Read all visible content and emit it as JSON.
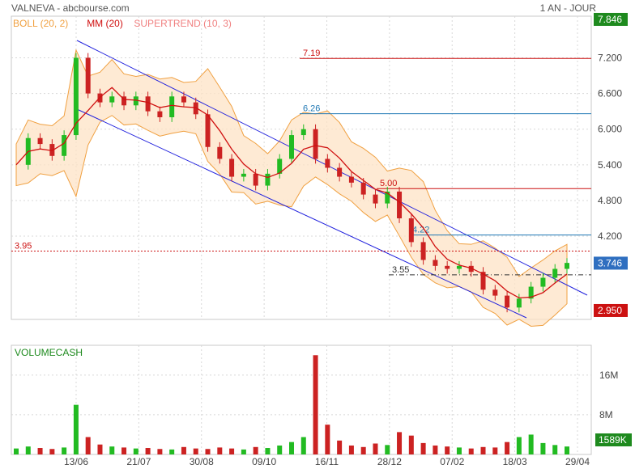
{
  "header": {
    "title": "VALNEVA - abcbourse.com",
    "period": "1 AN - JOUR"
  },
  "legend": [
    {
      "label": "BOLL (20, 2)",
      "color": "#f0a040"
    },
    {
      "label": "MM (20)",
      "color": "#d01010"
    },
    {
      "label": "SUPERTREND (10, 3)",
      "color": "#f08080"
    }
  ],
  "volume_label": "VOLUMECASH",
  "colors": {
    "up": "#22bb22",
    "down": "#cc2222",
    "channel": "#2020dd",
    "boll": "#f0a040",
    "ma": "#d01010",
    "supertrend": "#f08080"
  },
  "chart_data": [
    {
      "type": "line",
      "title": "",
      "x_tick_labels": [
        "13/06",
        "21/07",
        "30/08",
        "09/10",
        "16/11",
        "28/12",
        "07/02",
        "18/03",
        "29/04"
      ],
      "y_ticks": [
        7.2,
        6.6,
        6.0,
        5.4,
        4.8,
        4.2
      ],
      "y_tick_labels": [
        "7.200",
        "6.600",
        "6.000",
        "5.400",
        "4.800",
        "4.200"
      ],
      "ylim": [
        2.8,
        7.9
      ],
      "price_tags": [
        {
          "label": "7.846",
          "value": 7.846,
          "color": "#1e8a1e"
        },
        {
          "label": "3.746",
          "value": 3.746,
          "color": "#2f6fc0"
        },
        {
          "label": "2.950",
          "value": 2.95,
          "color": "#cc1111"
        }
      ],
      "levels": [
        {
          "label": "7.19",
          "value": 7.19,
          "color": "#cc1111"
        },
        {
          "label": "6.26",
          "value": 6.26,
          "color": "#1f78b4"
        },
        {
          "label": "5.00",
          "value": 5.0,
          "color": "#cc1111"
        },
        {
          "label": "4.22",
          "value": 4.22,
          "color": "#1f78b4"
        },
        {
          "label": "3.95",
          "value": 3.95,
          "color": "#cc1111"
        },
        {
          "label": "3.55",
          "value": 3.55,
          "color": "#333333"
        }
      ],
      "series": [
        {
          "x": [
            "10/05",
            "17/05",
            "24/05",
            "31/05",
            "07/06",
            "13/06",
            "21/06",
            "28/06",
            "05/07",
            "12/07",
            "21/07",
            "28/07",
            "04/08",
            "11/08",
            "18/08",
            "30/08",
            "06/09",
            "13/09",
            "20/09",
            "27/09",
            "09/10",
            "16/10",
            "23/10",
            "30/10",
            "06/11",
            "16/11",
            "23/11",
            "30/11",
            "07/12",
            "14/12",
            "21/12",
            "28/12",
            "04/01",
            "11/01",
            "18/01",
            "25/01",
            "01/02",
            "07/02",
            "14/02",
            "21/02",
            "28/02",
            "07/03",
            "18/03",
            "25/03",
            "01/04",
            "08/04",
            "15/04"
          ],
          "values": [
            5.4,
            5.85,
            5.75,
            5.55,
            5.9,
            7.2,
            6.6,
            6.45,
            6.55,
            6.4,
            6.55,
            6.3,
            6.2,
            6.55,
            6.45,
            6.25,
            5.7,
            5.5,
            5.2,
            5.25,
            5.05,
            5.25,
            5.5,
            5.9,
            6.0,
            5.5,
            5.35,
            5.2,
            5.1,
            4.9,
            4.75,
            4.95,
            4.5,
            4.1,
            3.8,
            3.7,
            3.65,
            3.7,
            3.6,
            3.3,
            3.2,
            3.0,
            3.15,
            3.35,
            3.5,
            3.65,
            3.75
          ]
        }
      ]
    },
    {
      "type": "bar",
      "title": "VOLUMECASH",
      "y_tick_labels": [
        "16M",
        "8M"
      ],
      "ylim": [
        0,
        22
      ],
      "last_value_label": "1589K",
      "series": [
        {
          "values": [
            1.2,
            1.6,
            1.3,
            1.1,
            1.4,
            10,
            3.5,
            2.0,
            1.6,
            1.4,
            1.2,
            1.3,
            1.1,
            1.0,
            1.5,
            1.2,
            1.1,
            1.4,
            1.2,
            1.0,
            1.5,
            1.3,
            1.8,
            2.5,
            3.5,
            20,
            6,
            2.8,
            1.8,
            1.5,
            2.2,
            1.9,
            4.5,
            3.8,
            2.3,
            1.8,
            1.6,
            1.4,
            1.2,
            1.5,
            1.4,
            2.5,
            3.5,
            4.0,
            2.3,
            1.9,
            1.6
          ]
        }
      ]
    }
  ]
}
